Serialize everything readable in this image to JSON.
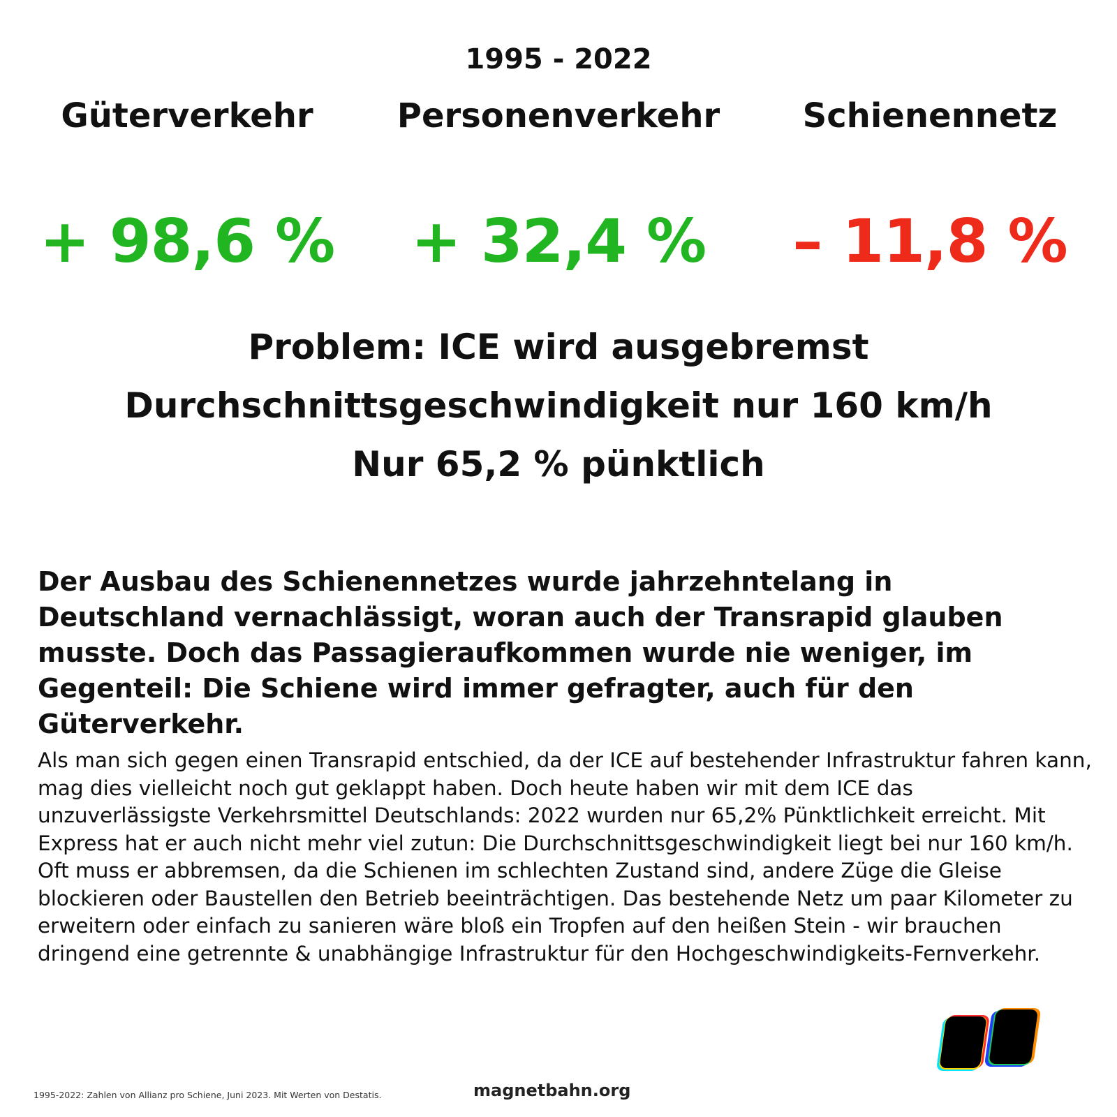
{
  "period": "1995 - 2022",
  "stats": [
    {
      "label": "Güterverkehr",
      "value": "+ 98,6 %",
      "trend": "up"
    },
    {
      "label": "Personenverkehr",
      "value": "+ 32,4 %",
      "trend": "up"
    },
    {
      "label": "Schienennetz",
      "value": "– 11,8 %",
      "trend": "down"
    }
  ],
  "colors": {
    "positive": "#22b522",
    "negative": "#ee2a1b",
    "text": "#111111"
  },
  "problem": {
    "line1": "Problem: ICE wird ausgebremst",
    "line2": "Durchschnittsgeschwindigkeit nur 160 km/h",
    "line3": "Nur 65,2 % pünktlich"
  },
  "intro": "Der Ausbau des Schienennetzes wurde jahrzehntelang in Deutschland vernachlässigt, woran auch der Transrapid glauben musste. Doch das Passagieraufkommen wurde nie weniger, im Gegenteil: Die Schiene wird immer gefragter, auch für den Güterverkehr.",
  "body": "Als man sich gegen einen Transrapid entschied, da der ICE auf bestehender Infrastruktur fahren kann, mag dies vielleicht noch gut geklappt haben. Doch heute haben wir mit dem ICE das unzuverlässigste Verkehrsmittel Deutschlands: 2022 wurden nur 65,2% Pünktlichkeit erreicht. Mit Express hat er auch nicht mehr viel zutun: Die Durchschnittsgeschwindigkeit liegt bei nur 160 km/h. Oft muss er abbremsen, da die Schienen im schlechten Zustand sind, andere Züge die Gleise blockieren oder Baustellen den Betrieb beeinträchtigen. Das bestehende Netz um paar Kilometer zu erweitern oder einfach zu sanieren wäre bloß ein Tropfen auf den heißen Stein - wir brauchen dringend eine getrennte & unabhängige Infrastruktur für den Hochgeschwindigkeits-Fernverkehr.",
  "footer": {
    "source": "1995-2022: Zahlen von Allianz pro Schiene, Juni 2023. Mit Werten von Destatis.",
    "website": "magnetbahn.org"
  },
  "logo_icon": "magnetbahn-logo"
}
